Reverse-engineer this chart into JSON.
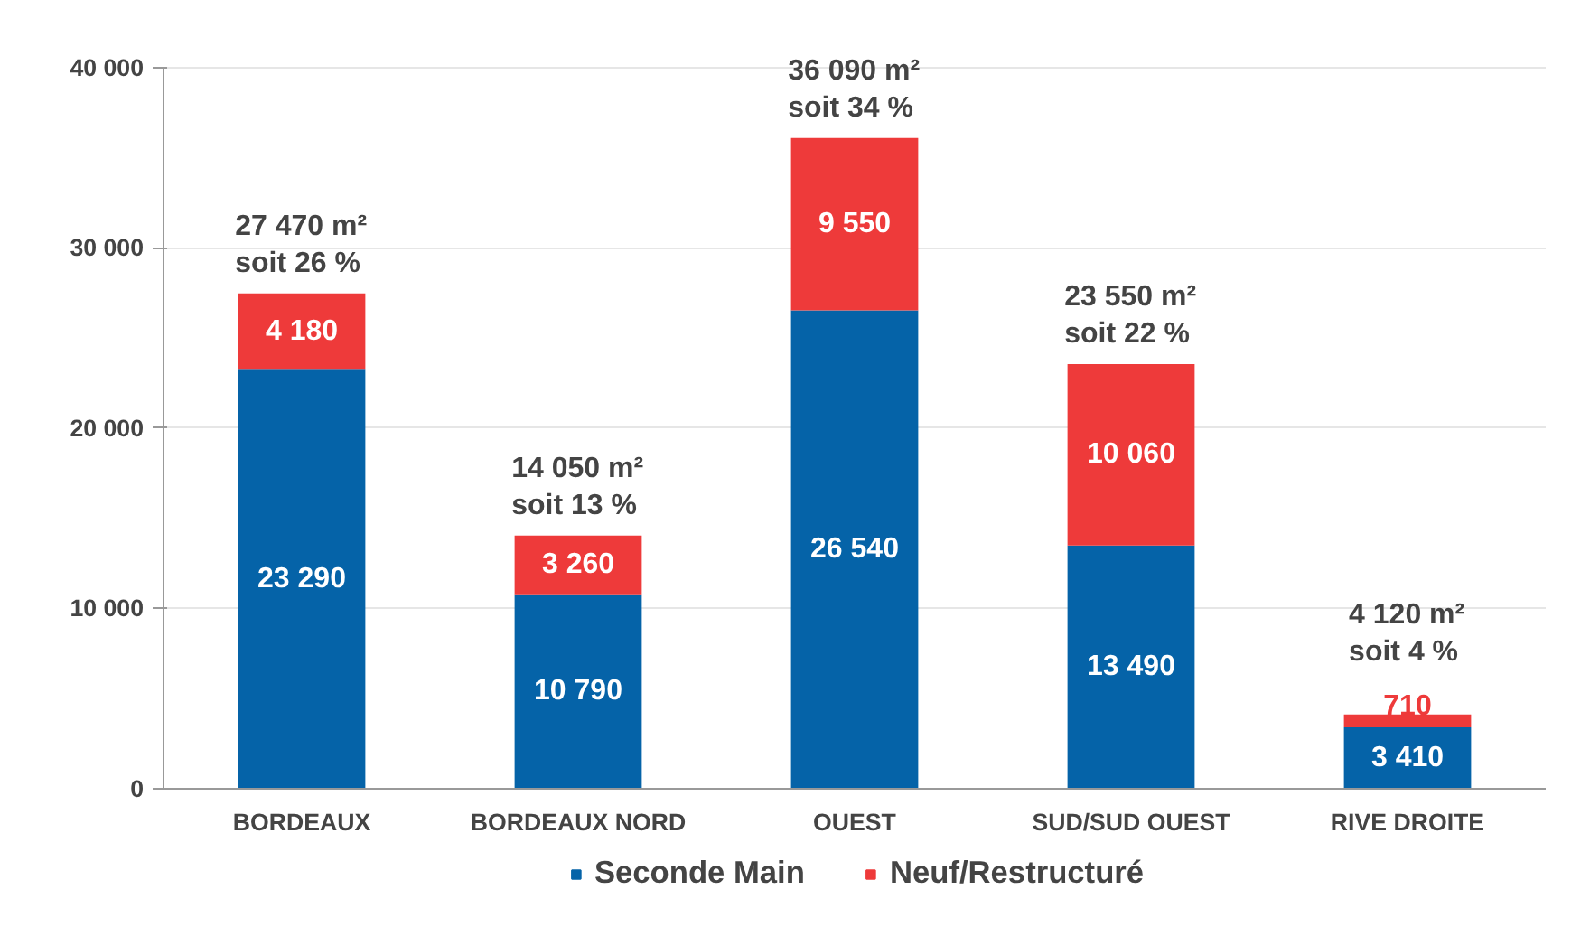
{
  "chart_data": {
    "type": "bar",
    "stacked": true,
    "categories": [
      "BORDEAUX",
      "BORDEAUX NORD",
      "OUEST",
      "SUD/SUD OUEST",
      "RIVE DROITE"
    ],
    "series": [
      {
        "name": "Seconde Main",
        "color": "#0563a8",
        "values": [
          23290,
          10790,
          26540,
          13490,
          3410
        ],
        "value_labels": [
          "23 290",
          "10 790",
          "26 540",
          "13 490",
          "3 410"
        ]
      },
      {
        "name": "Neuf/Restructuré",
        "color": "#ee3a3a",
        "values": [
          4180,
          3260,
          9550,
          10060,
          710
        ],
        "value_labels": [
          "4 180",
          "3 260",
          "9 550",
          "10 060",
          "710"
        ]
      }
    ],
    "totals": [
      "27 470 m²\nsoit  26 %",
      "14 050 m²\nsoit  13 %",
      "36 090 m²\nsoit  34 %",
      "23 550 m²\nsoit  22 %",
      "4 120 m²\nsoit  4 %"
    ],
    "ylim": [
      0,
      40000
    ],
    "yticks": [
      {
        "value": 0,
        "label": "0"
      },
      {
        "value": 10000,
        "label": "10 000"
      },
      {
        "value": 20000,
        "label": "20 000"
      },
      {
        "value": 30000,
        "label": "30 000"
      },
      {
        "value": 40000,
        "label": "40 000"
      }
    ],
    "grid": "y",
    "legend": "bottom"
  }
}
